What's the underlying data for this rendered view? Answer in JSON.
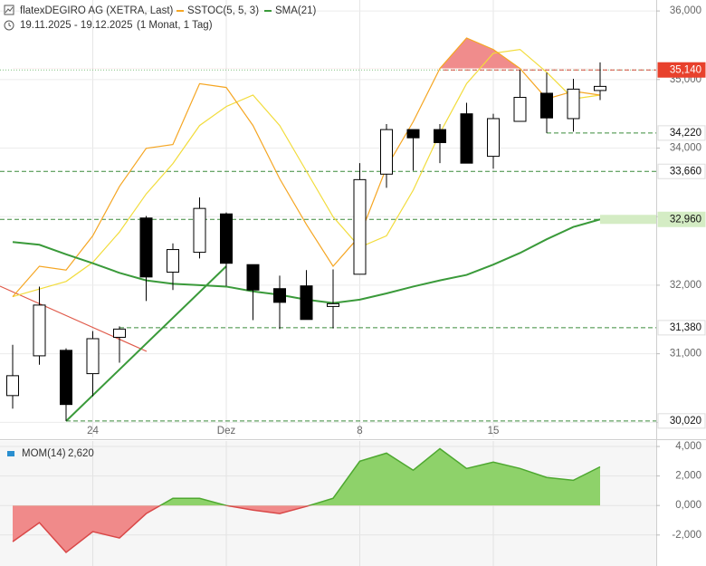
{
  "header": {
    "title": "flatexDEGIRO AG (XETRA, Last)",
    "range": "19.11.2025 - 19.12.2025",
    "period": "(1 Monat, 1 Tag)"
  },
  "chart_data": [
    {
      "type": "candlestick",
      "categories": [
        null,
        null,
        null,
        "24",
        null,
        null,
        null,
        null,
        "Dez",
        null,
        null,
        null,
        null,
        "8",
        null,
        null,
        null,
        null,
        "15",
        null,
        null,
        null,
        null
      ],
      "open": [
        30390,
        30970,
        31050,
        30710,
        31240,
        32980,
        32190,
        32480,
        33040,
        32300,
        31950,
        31990,
        31690,
        32160,
        33620,
        34270,
        34270,
        34500,
        33880,
        34390,
        34800,
        34430,
        34840
      ],
      "high": [
        31130,
        31980,
        31080,
        31330,
        31400,
        33010,
        32610,
        33280,
        33060,
        32300,
        32140,
        32220,
        32230,
        33780,
        34350,
        34270,
        34350,
        34660,
        34500,
        35140,
        35100,
        35010,
        35250
      ],
      "low": [
        30200,
        30840,
        30020,
        30380,
        30870,
        31770,
        31930,
        32390,
        31990,
        31490,
        31360,
        31500,
        31370,
        32160,
        33420,
        33670,
        33780,
        33780,
        33700,
        34390,
        34220,
        34240,
        34700
      ],
      "close": [
        30680,
        31710,
        30260,
        31220,
        31360,
        32120,
        32520,
        33120,
        32320,
        31930,
        31750,
        31500,
        31730,
        33540,
        34270,
        34150,
        34080,
        33780,
        34430,
        34740,
        34440,
        34860,
        34900
      ],
      "ylim": [
        29780,
        36160
      ],
      "yticks": [
        {
          "value": 30000,
          "label": "30,000"
        },
        {
          "value": 31000,
          "label": "31,000"
        },
        {
          "value": 32000,
          "label": "32,000"
        },
        {
          "value": 33000,
          "label": "33,000"
        },
        {
          "value": 34000,
          "label": "34,000"
        },
        {
          "value": 35000,
          "label": "35,000"
        },
        {
          "value": 36000,
          "label": "36,000"
        }
      ],
      "grid": true,
      "up_color": "#ffffff",
      "down_color": "#000000",
      "y2lim": [
        -17,
        98
      ],
      "series": [
        {
          "name": "SSTOC(5, 5, 3)",
          "color": "#f5a623",
          "axis": "y2",
          "values": [
            20,
            28,
            27,
            36,
            49,
            59,
            60,
            76,
            75,
            65,
            51,
            39,
            28,
            36,
            54,
            66,
            80,
            88,
            85,
            80,
            72,
            74,
            73
          ],
          "signal": [
            20,
            22,
            24,
            29,
            37,
            47,
            55,
            65,
            70,
            73,
            65,
            53,
            41,
            33,
            36,
            48,
            63,
            76,
            84,
            85,
            79,
            72,
            73
          ],
          "signal_color": "#f2dc3c",
          "overbought": 80,
          "fill_color": "#f08c8c"
        },
        {
          "name": "SMA(21)",
          "color": "#3a9a3a",
          "values": [
            32630,
            32590,
            32450,
            32320,
            32180,
            32070,
            32020,
            32000,
            31980,
            31910,
            31860,
            31790,
            31740,
            31790,
            31880,
            31980,
            32070,
            32150,
            32300,
            32470,
            32670,
            32850,
            32960
          ]
        }
      ],
      "levels": [
        {
          "value": 35140,
          "label": "35,140",
          "color": "#e8412c",
          "text_color": "#ffffff",
          "line_color": "#d24a3a"
        },
        {
          "value": 34220,
          "label": "34,220",
          "color": "#ffffff",
          "text_color": "#111111",
          "line_color": "#3a8a3a"
        },
        {
          "value": 33660,
          "label": "33,660",
          "color": "#ffffff",
          "text_color": "#111111",
          "line_color": "#3a8a3a"
        },
        {
          "value": 32960,
          "label": "32,960",
          "color": "#d4ecc4",
          "text_color": "#111111",
          "line_color": "#3a8a3a"
        },
        {
          "value": 31380,
          "label": "31,380",
          "color": "#ffffff",
          "text_color": "#111111",
          "line_color": "#3a8a3a"
        },
        {
          "value": 30020,
          "label": "30,020",
          "color": "#ffffff",
          "text_color": "#111111",
          "line_color": "#3a8a3a"
        }
      ]
    },
    {
      "type": "line",
      "series": [
        {
          "name": "MOM(14)",
          "color": "#2a8fd0",
          "last_label": "2,620",
          "values": [
            -2450,
            -1160,
            -3180,
            -1770,
            -2200,
            -550,
            490,
            490,
            0,
            -310,
            -550,
            -60,
            490,
            3000,
            3550,
            2390,
            3850,
            2510,
            2940,
            2510,
            1900,
            1710,
            2620
          ]
        }
      ],
      "ylim": [
        -4100,
        4370
      ],
      "yticks": [
        {
          "value": -2000,
          "label": "-2,000"
        },
        {
          "value": 0,
          "label": "0,000"
        },
        {
          "value": 2000,
          "label": "2,000"
        },
        {
          "value": 4000,
          "label": "4,000"
        }
      ],
      "grid": true,
      "positive_color": "#8ed26a",
      "negative_color": "#f08a8a",
      "positive_line": "#4ea830",
      "negative_line": "#d94848"
    }
  ]
}
